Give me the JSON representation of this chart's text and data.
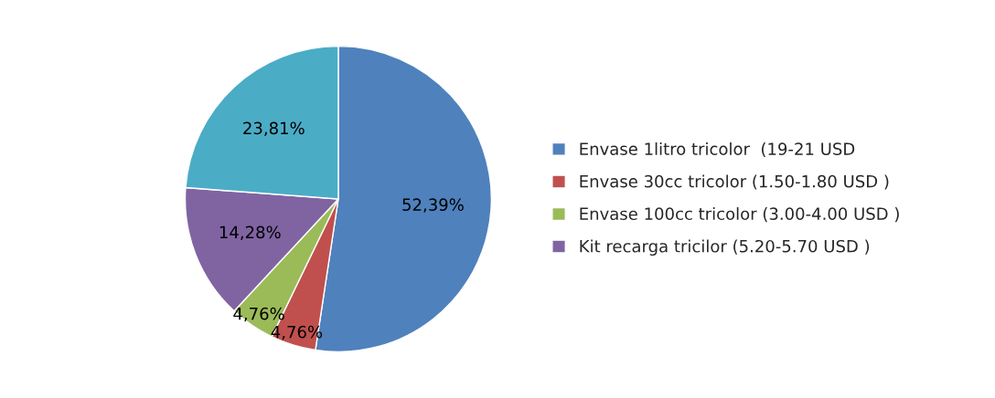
{
  "chart_data": {
    "type": "pie",
    "categories": [
      "Envase 1litro tricolor  (19-21 USD",
      "Envase 30cc tricolor (1.50-1.80 USD )",
      "Envase 100cc tricolor (3.00-4.00 USD )",
      "Kit recarga tricilor (5.20-5.70 USD )",
      null
    ],
    "values": [
      52.39,
      4.76,
      4.76,
      14.28,
      23.81
    ],
    "value_labels": [
      "52,39%",
      "4,76%",
      "4,76%",
      "14,28%",
      "23,81%"
    ],
    "colors": [
      "#4f81bd",
      "#c0504d",
      "#9bbb59",
      "#8064a2",
      "#4bacc6"
    ],
    "legend": "right"
  }
}
